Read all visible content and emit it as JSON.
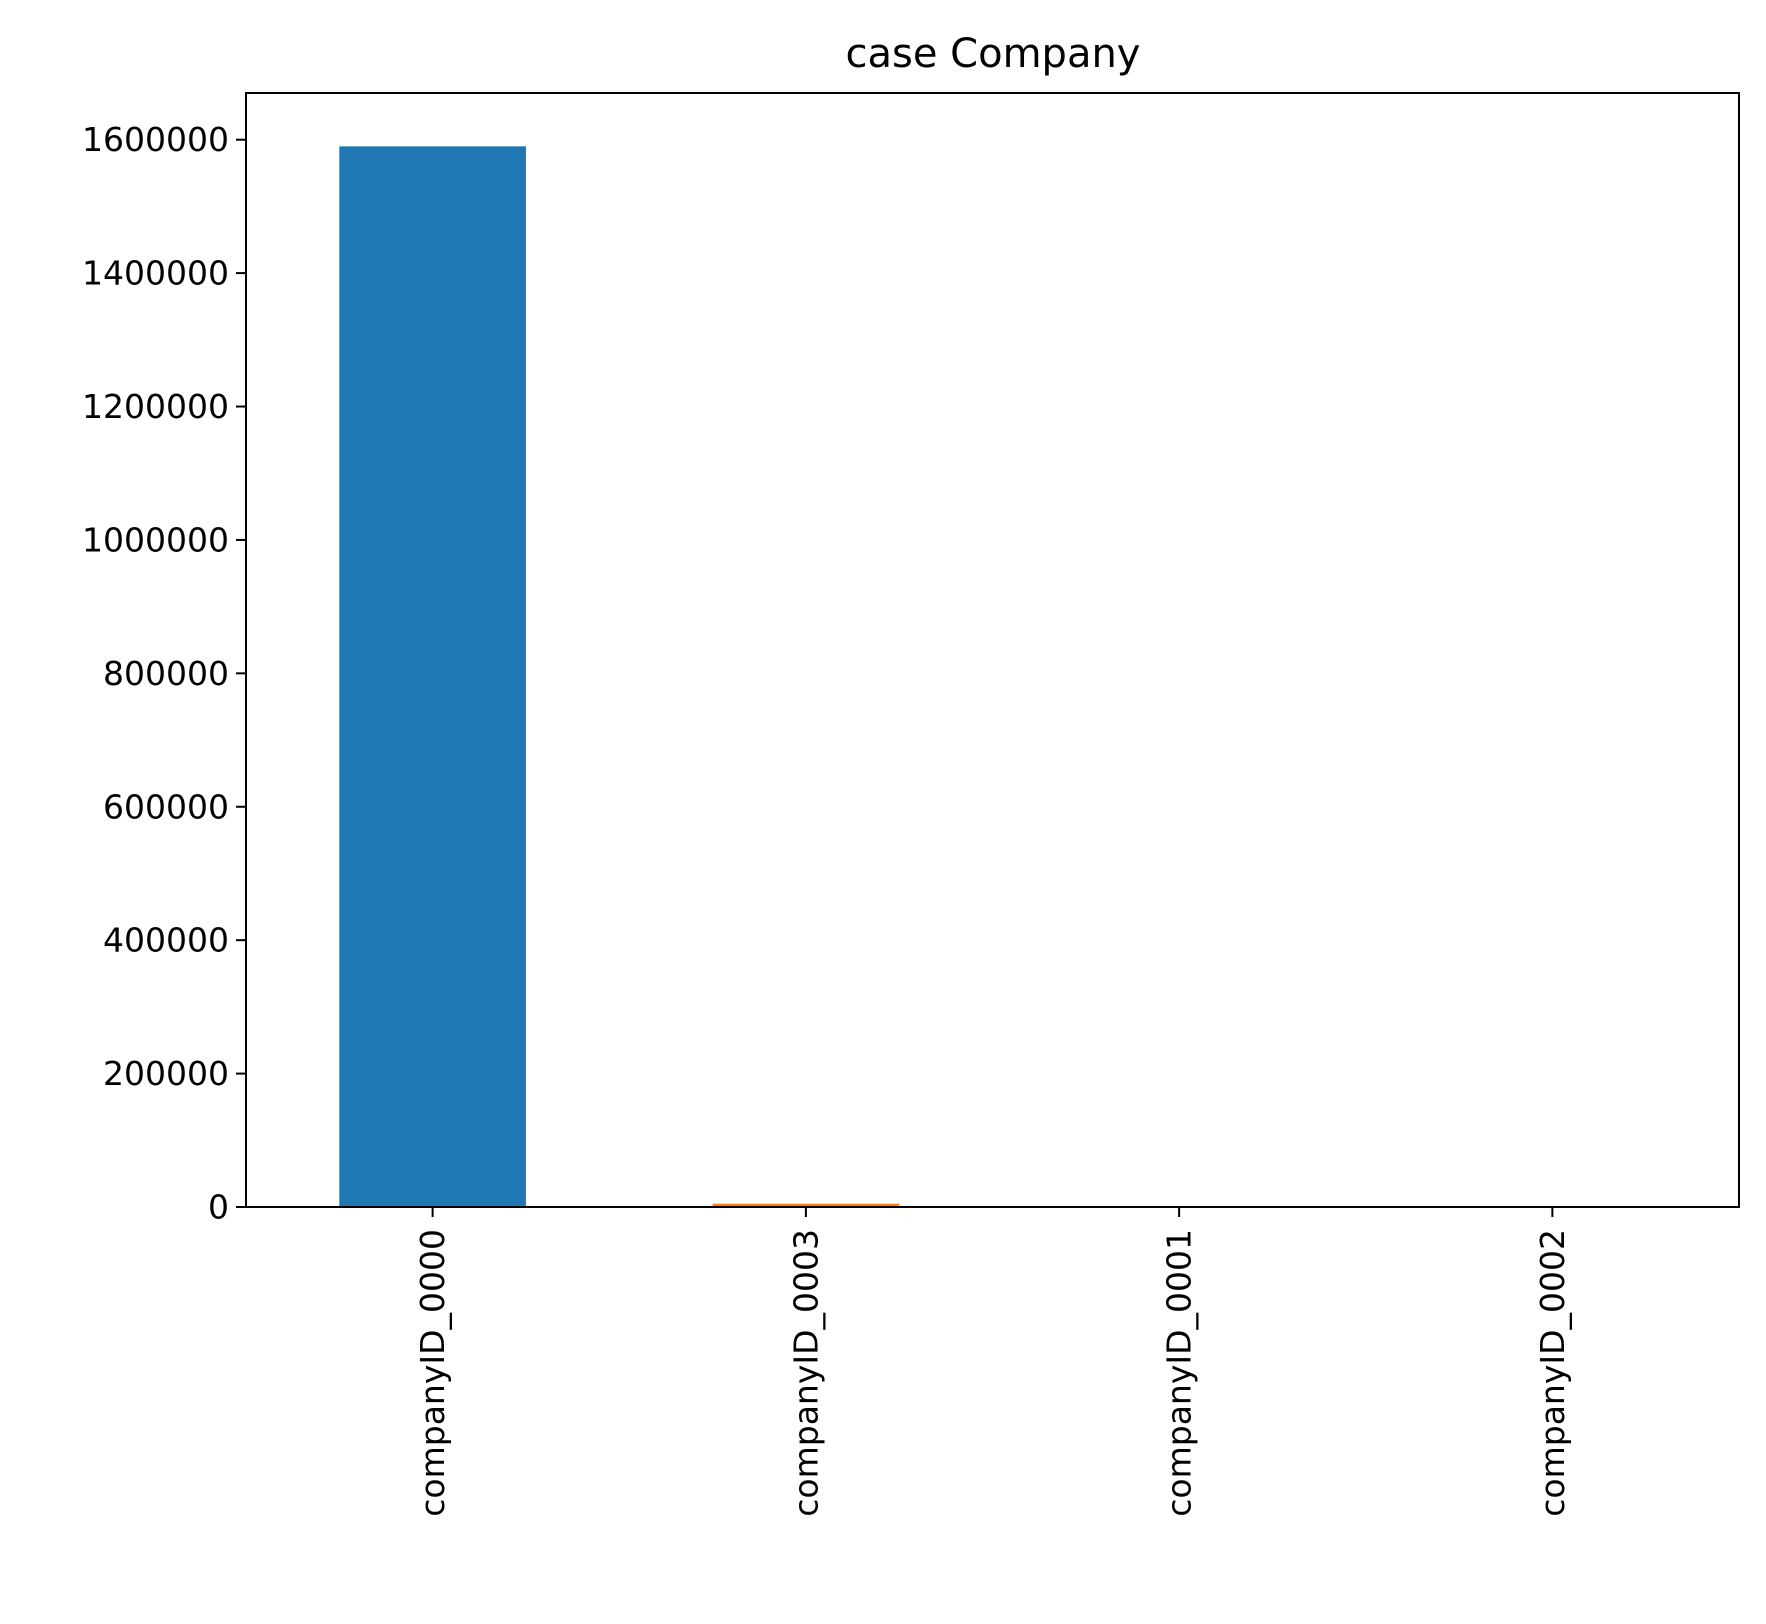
{
  "chart_data": {
    "type": "bar",
    "title": "case Company",
    "xlabel": "",
    "ylabel": "",
    "categories": [
      "companyID_0000",
      "companyID_0003",
      "companyID_0001",
      "companyID_0002"
    ],
    "values": [
      1590000,
      5000,
      500,
      200
    ],
    "bar_colors": [
      "#1f77b4",
      "#ff7f0e",
      "#2ca02c",
      "#d62728"
    ],
    "ylim": [
      0,
      1670000
    ],
    "yticks": [
      0,
      200000,
      400000,
      600000,
      800000,
      1000000,
      1200000,
      1400000,
      1600000
    ],
    "ytick_labels": [
      "0",
      "200000",
      "400000",
      "600000",
      "800000",
      "1000000",
      "1200000",
      "1400000",
      "1600000"
    ],
    "grid": false,
    "legend": "none"
  }
}
